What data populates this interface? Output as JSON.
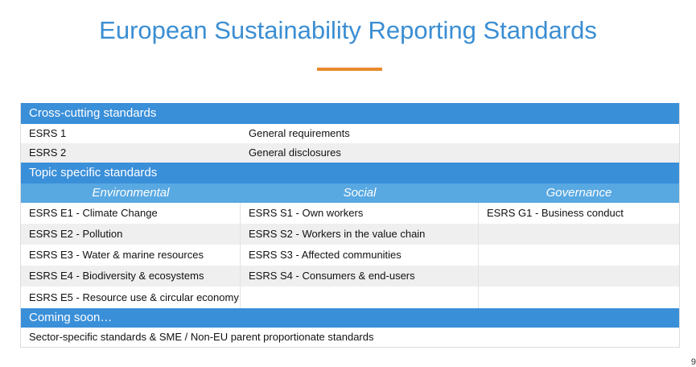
{
  "title": "European Sustainability Reporting Standards",
  "accent_color": "#3b8ed3",
  "rule_color": "#e8892b",
  "sections": {
    "cross_cutting": {
      "header": "Cross-cutting standards",
      "rows": [
        {
          "code": "ESRS 1",
          "desc": "General requirements"
        },
        {
          "code": "ESRS 2",
          "desc": "General disclosures"
        }
      ]
    },
    "topic_specific": {
      "header": "Topic specific standards",
      "columns": [
        "Environmental",
        "Social",
        "Governance"
      ],
      "rows": [
        [
          "ESRS E1 - Climate Change",
          "ESRS S1 - Own workers",
          "ESRS G1 - Business conduct"
        ],
        [
          "ESRS E2 - Pollution",
          "ESRS S2 - Workers in the value chain",
          ""
        ],
        [
          "ESRS E3 - Water & marine resources",
          "ESRS S3 - Affected communities",
          ""
        ],
        [
          "ESRS E4 - Biodiversity & ecosystems",
          "ESRS S4 - Consumers & end-users",
          ""
        ],
        [
          "ESRS E5 - Resource use & circular economy",
          "",
          ""
        ]
      ]
    },
    "coming_soon": {
      "header": "Coming soon…",
      "text": "Sector-specific standards & SME / Non-EU parent proportionate standards"
    }
  },
  "page_number": "9"
}
